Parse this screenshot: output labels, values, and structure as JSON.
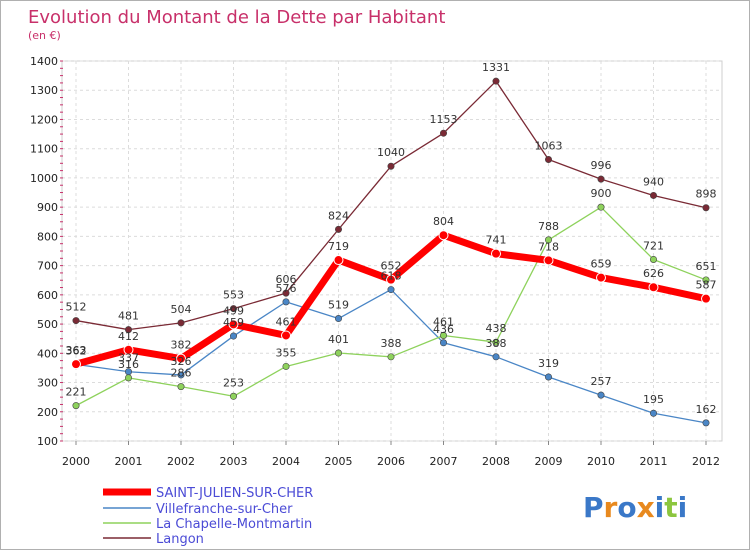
{
  "chart_data": {
    "type": "line",
    "title": "Evolution du Montant de la Dette par Habitant",
    "subtitle": "(en €)",
    "x": [
      "2000",
      "2001",
      "2002",
      "2003",
      "2004",
      "2005",
      "2006",
      "2007",
      "2008",
      "2009",
      "2010",
      "2011",
      "2012"
    ],
    "ylim": [
      100,
      1400
    ],
    "yticks": [
      100,
      200,
      300,
      400,
      500,
      600,
      700,
      800,
      900,
      1000,
      1100,
      1200,
      1300,
      1400
    ],
    "grid": true,
    "legend_position": "bottom-left",
    "series": [
      {
        "name": "SAINT-JULIEN-SUR-CHER",
        "color": "#ff0000",
        "values": [
          363,
          412,
          382,
          499,
          461,
          719,
          652,
          804,
          741,
          718,
          659,
          626,
          587
        ],
        "labels": [
          "363",
          "412",
          "382",
          "499",
          "461",
          "719",
          "652",
          "804",
          "741",
          "718",
          "659",
          "626",
          "587"
        ]
      },
      {
        "name": "Villefranche-sur-Cher",
        "color": "#4a86c6",
        "values": [
          362,
          337,
          326,
          459,
          576,
          519,
          618,
          436,
          388,
          319,
          257,
          195,
          162
        ],
        "labels": [
          "362",
          "337",
          "326",
          "459",
          "576",
          "519",
          "618",
          "436",
          "388",
          "319",
          "257",
          "195",
          "162"
        ]
      },
      {
        "name": "La Chapelle-Montmartin",
        "color": "#8ed25c",
        "values": [
          221,
          316,
          286,
          253,
          355,
          401,
          388,
          461,
          438,
          788,
          900,
          721,
          651
        ],
        "labels": [
          "221",
          "316",
          "286",
          "253",
          "355",
          "401",
          "388",
          "461",
          "438",
          "788",
          "900",
          "721",
          "651"
        ]
      },
      {
        "name": "Langon",
        "color": "#7a2a35",
        "values": [
          512,
          481,
          504,
          553,
          606,
          824,
          1040,
          1153,
          1331,
          1063,
          996,
          940,
          898
        ],
        "labels": [
          "512",
          "481",
          "504",
          "553",
          "606",
          "824",
          "1040",
          "1153",
          "1331",
          "1063",
          "996",
          "940",
          "898"
        ]
      }
    ]
  },
  "brand": {
    "letters": [
      "P",
      "r",
      "o",
      "x",
      "i",
      "t",
      "i"
    ],
    "colors": [
      "#3a78c8",
      "#e8891e",
      "#3a78c8",
      "#e8891e",
      "#3a78c8",
      "#8cc63f",
      "#3a78c8"
    ]
  }
}
